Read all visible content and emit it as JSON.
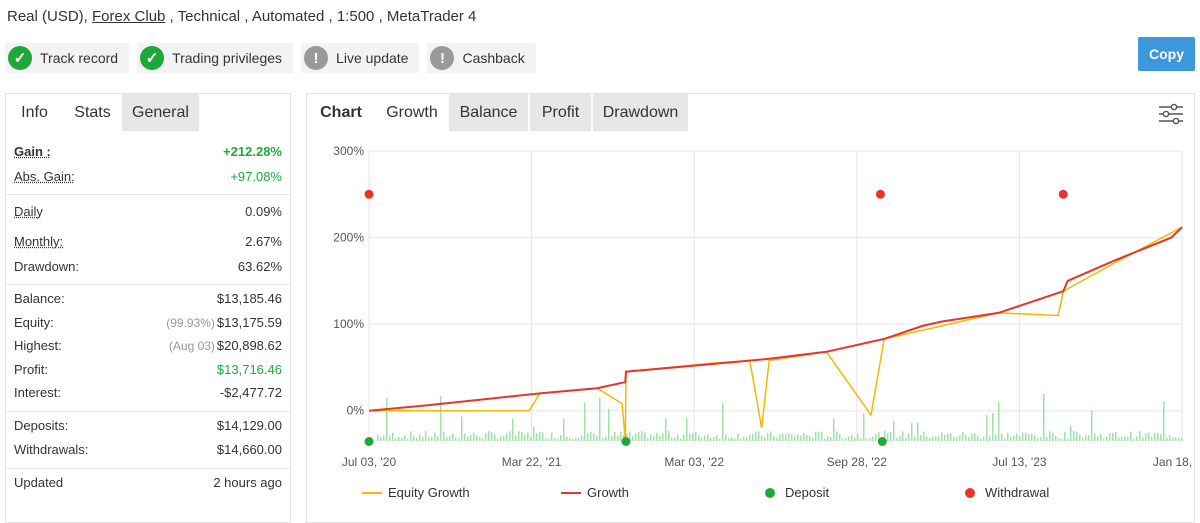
{
  "header": {
    "prefix": "Real (USD), ",
    "broker": "Forex Club",
    "suffix": " , Technical , Automated , 1:500 , MetaTrader 4"
  },
  "badges": [
    {
      "label": "Track record",
      "status": "verified",
      "icon": "check-icon"
    },
    {
      "label": "Trading privileges",
      "status": "verified",
      "icon": "check-icon"
    },
    {
      "label": "Live update",
      "status": "unverified",
      "icon": "exclamation-icon"
    },
    {
      "label": "Cashback",
      "status": "unverified",
      "icon": "exclamation-icon"
    }
  ],
  "copy_label": "Copy",
  "left_tabs": [
    "Info",
    "Stats",
    "General"
  ],
  "stats": {
    "gain": {
      "label": "Gain :",
      "value": "+212.28%"
    },
    "abs_gain": {
      "label": "Abs. Gain:",
      "value": "+97.08%"
    },
    "daily": {
      "label": "Daily",
      "value": "0.09%"
    },
    "monthly": {
      "label": "Monthly:",
      "value": "2.67%"
    },
    "drawdown": {
      "label": "Drawdown:",
      "value": "63.62%"
    },
    "balance": {
      "label": "Balance:",
      "value": "$13,185.46"
    },
    "equity": {
      "label": "Equity:",
      "sub": "(99.93%)",
      "value": "$13,175.59"
    },
    "highest": {
      "label": "Highest:",
      "sub": "(Aug 03)",
      "value": "$20,898.62"
    },
    "profit": {
      "label": "Profit:",
      "value": "$13,716.46"
    },
    "interest": {
      "label": "Interest:",
      "value": "-$2,477.72"
    },
    "deposits": {
      "label": "Deposits:",
      "value": "$14,129.00"
    },
    "withdrawals": {
      "label": "Withdrawals:",
      "value": "$14,660.00"
    },
    "updated": {
      "label": "Updated",
      "value": "2 hours ago"
    }
  },
  "chart_tabs": {
    "label": "Chart",
    "items": [
      "Growth",
      "Balance",
      "Profit",
      "Drawdown"
    ],
    "active": "Growth"
  },
  "colors": {
    "growth": "#e8352b",
    "equity": "#f5b800",
    "deposit": "#1fa83a",
    "withdrawal": "#e8352b",
    "volume": "#9ee3a6"
  },
  "chart_data": {
    "type": "line",
    "ylim": [
      -35,
      300
    ],
    "y_ticks": [
      "300%",
      "200%",
      "100%",
      "0%"
    ],
    "y_tick_values": [
      300,
      200,
      100,
      0
    ],
    "x_ticks": [
      "Jul 03, '20",
      "Mar 22, '21",
      "Mar 03, '22",
      "Sep 28, '22",
      "Jul 13, '23",
      "Jan 18, '24"
    ],
    "x_range": [
      "2020-07-03",
      "2024-01-18"
    ],
    "series": [
      {
        "name": "Growth",
        "x": [
          "2020-07-03",
          "2020-10-01",
          "2021-01-01",
          "2021-04-01",
          "2021-07-01",
          "2021-08-15",
          "2021-08-16",
          "2021-10-01",
          "2022-01-01",
          "2022-04-01",
          "2022-07-01",
          "2022-10-01",
          "2022-12-01",
          "2023-01-01",
          "2023-04-01",
          "2023-07-13",
          "2023-07-20",
          "2023-10-01",
          "2024-01-01",
          "2024-01-18"
        ],
        "y": [
          0,
          6,
          13,
          20,
          26,
          33,
          45,
          48,
          54,
          60,
          68,
          83,
          98,
          103,
          113,
          138,
          150,
          173,
          200,
          212
        ]
      },
      {
        "name": "Equity Growth",
        "x": [
          "2020-07-03",
          "2021-03-15",
          "2021-04-01",
          "2021-07-01",
          "2021-08-10",
          "2021-08-15",
          "2021-08-16",
          "2022-01-01",
          "2022-03-01",
          "2022-03-20",
          "2022-04-01",
          "2022-07-01",
          "2022-09-10",
          "2022-10-01",
          "2023-01-01",
          "2023-04-01",
          "2023-07-05",
          "2023-07-13",
          "2023-10-01",
          "2024-01-18"
        ],
        "y": [
          0,
          0,
          20,
          26,
          8,
          -35,
          45,
          55,
          58,
          -20,
          58,
          68,
          -5,
          83,
          98,
          113,
          110,
          138,
          170,
          212
        ]
      }
    ],
    "deposits_x": [
      "2020-07-03",
      "2021-08-16",
      "2022-09-28"
    ],
    "withdrawals_x": [
      "2020-07-03",
      "2022-09-25",
      "2023-07-13"
    ],
    "withdrawals_level": 250,
    "legend": [
      "Equity Growth",
      "Growth",
      "Deposit",
      "Withdrawal"
    ]
  }
}
